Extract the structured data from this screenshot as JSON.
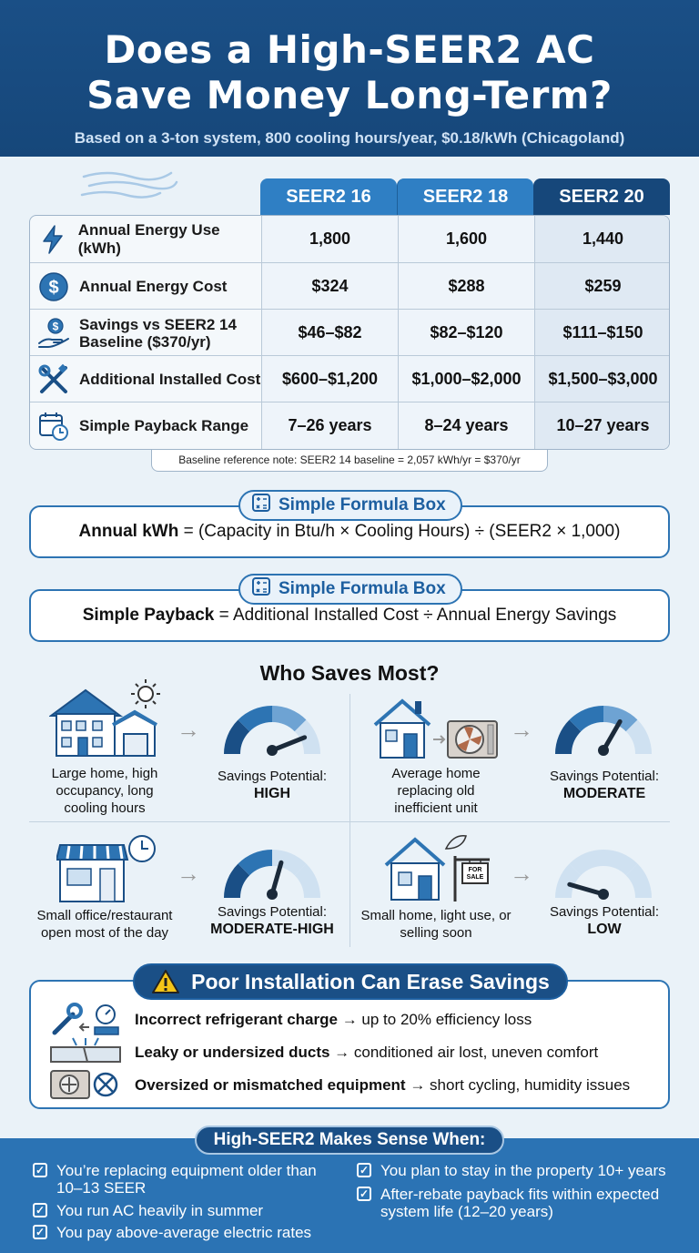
{
  "header": {
    "title_line1": "Does a High-SEER2 AC",
    "title_line2": "Save Money Long-Term?",
    "subtitle": "Based on a 3-ton system, 800 cooling hours/year, $0.18/kWh (Chicagoland)"
  },
  "table": {
    "columns": [
      "SEER2 16",
      "SEER2 18",
      "SEER2 20"
    ],
    "colors": {
      "col1": "#2f7fc4",
      "col2": "#2f7fc4",
      "col3": "#16477a"
    },
    "rows": [
      {
        "icon": "lightning-icon",
        "label": "Annual Energy Use (kWh)",
        "values": [
          "1,800",
          "1,600",
          "1,440"
        ]
      },
      {
        "icon": "dollar-icon",
        "label": "Annual Energy Cost",
        "values": [
          "$324",
          "$288",
          "$259"
        ]
      },
      {
        "icon": "hand-dollar-icon",
        "label_line1": "Savings vs SEER2 14",
        "label_line2": "Baseline ($370/yr)",
        "values": [
          "$46–$82",
          "$82–$120",
          "$111–$150"
        ]
      },
      {
        "icon": "wrench-screwdriver-icon",
        "label": "Additional Installed Cost",
        "values": [
          "$600–$1,200",
          "$1,000–$2,000",
          "$1,500–$3,000"
        ]
      },
      {
        "icon": "calendar-clock-icon",
        "label": "Simple Payback Range",
        "values": [
          "7–26 years",
          "8–24 years",
          "10–27 years"
        ]
      }
    ],
    "note": "Baseline reference note: SEER2 14 baseline = 2,057 kWh/yr = $370/yr"
  },
  "formula1": {
    "pill": "Simple Formula Box",
    "bold": "Annual kWh",
    "text": " = (Capacity in Btu/h × Cooling Hours) ÷ (SEER2 × 1,000)"
  },
  "formula2": {
    "pill": "Simple Formula Box",
    "bold": "Simple Payback",
    "text": " = Additional Installed Cost ÷ Annual Energy Savings"
  },
  "who": {
    "title": "Who Saves Most?",
    "items": [
      {
        "desc": "Large home, high occupancy, long cooling hours",
        "sp_label": "Savings Potential:",
        "level": "HIGH",
        "gauge": 0.85
      },
      {
        "desc": "Average home replacing old inefficient unit",
        "sp_label": "Savings Potential:",
        "level": "MODERATE",
        "gauge": 0.65
      },
      {
        "desc": "Small office/restaurant open most of the day",
        "sp_label": "Savings Potential:",
        "level": "MODERATE-HIGH",
        "gauge": 0.58
      },
      {
        "desc": "Small home, light use, or selling soon",
        "sp_label": "Savings Potential:",
        "level": "LOW",
        "gauge": 0.12
      }
    ],
    "for_sale": "FOR SALE"
  },
  "poor": {
    "title": "Poor Installation Can Erase Savings",
    "items": [
      {
        "bold": "Incorrect refrigerant charge",
        "text": " → up to 20% efficiency loss"
      },
      {
        "bold": "Leaky or undersized ducts",
        "text": " → conditioned air lost, uneven comfort"
      },
      {
        "bold": "Oversized or mismatched equipment",
        "text": " → short cycling, humidity issues"
      }
    ]
  },
  "footer": {
    "title": "High-SEER2 Makes Sense When:",
    "left": [
      "You’re replacing equipment older than 10–13 SEER",
      "You run AC heavily in summer",
      "You pay above-average electric rates"
    ],
    "right": [
      "You plan to stay in the property 10+ years",
      "After-rebate payback fits within expected system life (12–20 years)"
    ]
  }
}
